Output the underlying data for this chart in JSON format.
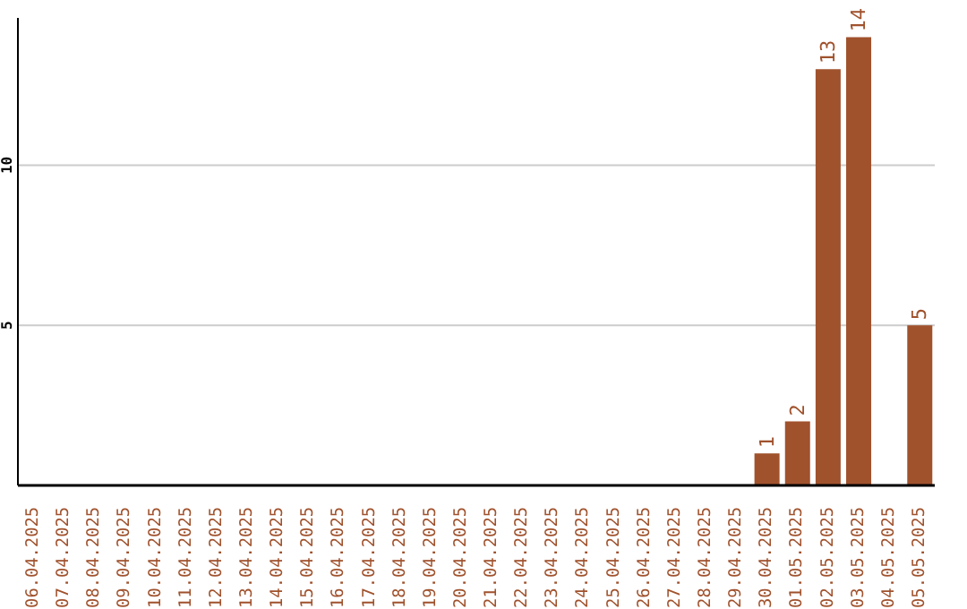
{
  "chart_data": {
    "type": "bar",
    "categories": [
      "06.04.2025",
      "07.04.2025",
      "08.04.2025",
      "09.04.2025",
      "10.04.2025",
      "11.04.2025",
      "12.04.2025",
      "13.04.2025",
      "14.04.2025",
      "15.04.2025",
      "16.04.2025",
      "17.04.2025",
      "18.04.2025",
      "19.04.2025",
      "20.04.2025",
      "21.04.2025",
      "22.04.2025",
      "23.04.2025",
      "24.04.2025",
      "25.04.2025",
      "26.04.2025",
      "27.04.2025",
      "28.04.2025",
      "29.04.2025",
      "30.04.2025",
      "01.05.2025",
      "02.05.2025",
      "03.05.2025",
      "04.05.2025",
      "05.05.2025"
    ],
    "values": [
      0,
      0,
      0,
      0,
      0,
      0,
      0,
      0,
      0,
      0,
      0,
      0,
      0,
      0,
      0,
      0,
      0,
      0,
      0,
      0,
      0,
      0,
      0,
      0,
      1,
      2,
      13,
      14,
      0,
      5
    ],
    "value_labels": [
      null,
      null,
      null,
      null,
      null,
      null,
      null,
      null,
      null,
      null,
      null,
      null,
      null,
      null,
      null,
      null,
      null,
      null,
      null,
      null,
      null,
      null,
      null,
      null,
      "1",
      "2",
      "13",
      "14",
      null,
      "5"
    ],
    "color": "#a0522d",
    "ylim": [
      0,
      14.6
    ],
    "yticks": [
      5,
      10
    ],
    "grid": "y"
  }
}
